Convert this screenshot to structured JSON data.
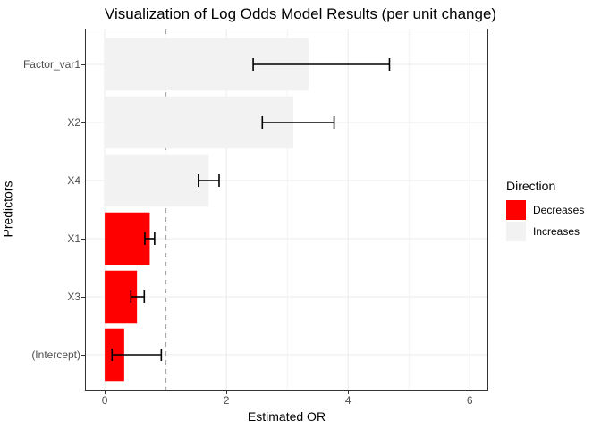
{
  "chart_data": {
    "type": "bar",
    "orientation": "horizontal",
    "title": "Visualization of Log Odds Model Results (per unit change)",
    "xlabel": "Estimated OR",
    "ylabel": "Predictors",
    "xlim": [
      -0.31,
      6.29
    ],
    "x_breaks": [
      0,
      2,
      4,
      6
    ],
    "x_minor_breaks": [
      1,
      3,
      5
    ],
    "reference_line_x": 1,
    "grid": true,
    "legend_position": "right",
    "categories_top_to_bottom": [
      "Factor_var1",
      "X2",
      "X4",
      "X1",
      "X3",
      "(Intercept)"
    ],
    "bars": [
      {
        "label": "Factor_var1",
        "or": 3.35,
        "ci_low": 2.44,
        "ci_high": 4.68,
        "direction": "Increases"
      },
      {
        "label": "X2",
        "or": 3.1,
        "ci_low": 2.59,
        "ci_high": 3.77,
        "direction": "Increases"
      },
      {
        "label": "X4",
        "or": 1.71,
        "ci_low": 1.54,
        "ci_high": 1.88,
        "direction": "Increases"
      },
      {
        "label": "X1",
        "or": 0.74,
        "ci_low": 0.66,
        "ci_high": 0.82,
        "direction": "Decreases"
      },
      {
        "label": "X3",
        "or": 0.53,
        "ci_low": 0.43,
        "ci_high": 0.65,
        "direction": "Decreases"
      },
      {
        "label": "(Intercept)",
        "or": 0.32,
        "ci_low": 0.12,
        "ci_high": 0.93,
        "direction": "Decreases"
      }
    ],
    "colors": {
      "Decreases": "#FF0000",
      "Increases": "#F2F2F2"
    },
    "legend": {
      "title": "Direction",
      "items": [
        {
          "label": "Decreases",
          "color": "#FF0000"
        },
        {
          "label": "Increases",
          "color": "#F2F2F2"
        }
      ]
    }
  }
}
